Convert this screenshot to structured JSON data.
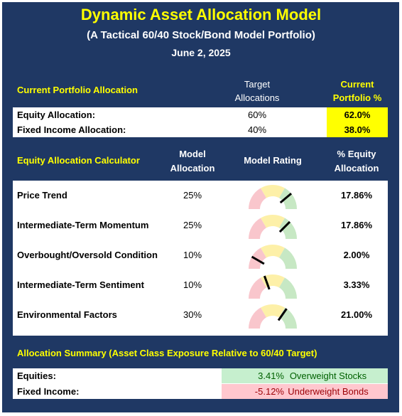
{
  "header": {
    "title": "Dynamic Asset Allocation Model",
    "subtitle": "(A Tactical 60/40 Stock/Bond Model Portfolio)",
    "date": "June 2, 2025"
  },
  "portfolio": {
    "heading": "Current Portfolio Allocation",
    "target_heading": "Target Allocations",
    "current_heading": "Current Portfolio %",
    "rows": [
      {
        "label": "Equity Allocation:",
        "target": "60%",
        "current": "62.0%"
      },
      {
        "label": "Fixed Income Allocation:",
        "target": "40%",
        "current": "38.0%"
      }
    ]
  },
  "calculator": {
    "heading": "Equity Allocation Calculator",
    "allocation_heading": "Model Allocation",
    "rating_heading": "Model Rating",
    "equity_heading": "% Equity Allocation",
    "rows": [
      {
        "label": "Price Trend",
        "allocation": "25%",
        "equity": "17.86%"
      },
      {
        "label": "Intermediate-Term Momentum",
        "allocation": "25%",
        "equity": "17.86%"
      },
      {
        "label": "Overbought/Oversold Condition",
        "allocation": "10%",
        "equity": "2.00%"
      },
      {
        "label": "Intermediate-Term Sentiment",
        "allocation": "10%",
        "equity": "3.33%"
      },
      {
        "label": "Environmental Factors",
        "allocation": "30%",
        "equity": "21.00%"
      }
    ]
  },
  "summary": {
    "heading": "Allocation Summary (Asset Class Exposure Relative to 60/40 Target)",
    "rows": [
      {
        "label": "Equities:",
        "value": "3.41%",
        "note": "Overweight Stocks"
      },
      {
        "label": "Fixed Income:",
        "value": "-5.12%",
        "note": "Underweight Bonds"
      }
    ]
  }
}
